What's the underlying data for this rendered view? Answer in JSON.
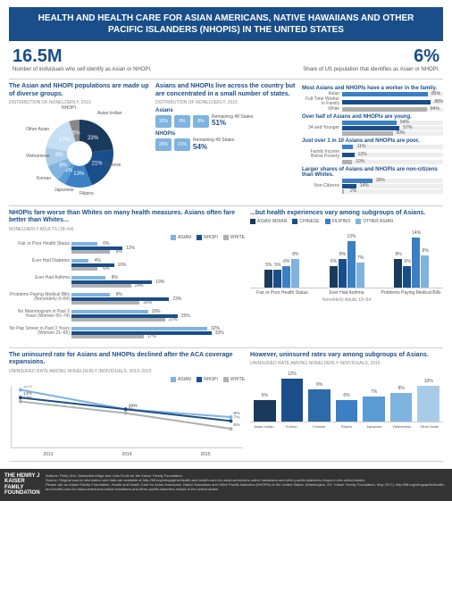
{
  "title": "HEALTH AND HEALTH CARE FOR ASIAN AMERICANS, NATIVE HAWAIIANS AND OTHER PACIFIC ISLANDERS (NHOPIS) IN THE UNITED STATES",
  "topstats": {
    "left_val": "16.5M",
    "left_sub": "Number of individuals who self identify as Asian or NHOPI.",
    "right_val": "6%",
    "right_sub": "Share of US population that identifies as Asian or NHOPI."
  },
  "colors": {
    "navy": "#1a4e8a",
    "blue": "#3b7fc4",
    "light": "#7fb3e0",
    "pale": "#c6dff2",
    "gray": "#b0b0b0",
    "dark": "#333333",
    "grid": "#e0e0e0"
  },
  "pie": {
    "hdr": "The Asian and NHOPI populations are made up of diverse groups.",
    "sub": "DISTRIBUTION OF NONELDERLY, 2015",
    "slices": [
      {
        "label": "Asian Indian",
        "val": 23,
        "color": "#1a3a5c"
      },
      {
        "label": "Chinese",
        "val": 21,
        "color": "#1a4e8a"
      },
      {
        "label": "Filipino",
        "val": 13,
        "color": "#3b7fc4"
      },
      {
        "label": "Japanese",
        "val": 4,
        "color": "#5a9bd4"
      },
      {
        "label": "Korean",
        "val": 8,
        "color": "#7fb3e0"
      },
      {
        "label": "Vietnamese",
        "val": 9,
        "color": "#a8cce8"
      },
      {
        "label": "Other Asian",
        "val": 17,
        "color": "#c6dff2"
      },
      {
        "label": "NHOPI",
        "val": 5,
        "color": "#888888"
      }
    ]
  },
  "maps": {
    "hdr": "Asians and NHOPIs live across the country but are concentrated in a small number of states.",
    "sub": "DISTRIBUTION OF NONELDERLY, 2015",
    "asians": {
      "title": "Asians",
      "states": [
        {
          "v": "32%"
        },
        {
          "v": "9%"
        },
        {
          "v": "8%"
        }
      ],
      "remain_lbl": "Remaining 48 States",
      "remain_pct": "51%"
    },
    "nhopis": {
      "title": "NHOPIs",
      "states": [
        {
          "v": "25%"
        },
        {
          "v": "21%"
        }
      ],
      "remain_lbl": "Remaining 49 States",
      "remain_pct": "54%"
    }
  },
  "rightcol": {
    "g1": {
      "hdr": "Most Asians and NHOPIs have a worker in the family.",
      "lbl": "Full-Time Worker in Family",
      "rows": [
        {
          "n": "Asian",
          "v": 85,
          "c": "#3b7fc4"
        },
        {
          "n": "NHOPI",
          "v": 88,
          "c": "#1a4e8a"
        },
        {
          "n": "White",
          "v": 84,
          "c": "#b0b0b0"
        }
      ]
    },
    "g2": {
      "hdr": "Over half of Asians and NHOPIs are young.",
      "lbl": "34 and Younger",
      "rows": [
        {
          "n": "",
          "v": 54,
          "c": "#3b7fc4"
        },
        {
          "n": "",
          "v": 57,
          "c": "#1a4e8a"
        },
        {
          "n": "",
          "v": 50,
          "c": "#b0b0b0"
        }
      ]
    },
    "g3": {
      "hdr": "Just over 1 in 10 Asians and NHOPIs are poor.",
      "lbl": "Family Income Below Poverty",
      "rows": [
        {
          "n": "",
          "v": 11,
          "c": "#3b7fc4"
        },
        {
          "n": "",
          "v": 12,
          "c": "#1a4e8a"
        },
        {
          "n": "",
          "v": 10,
          "c": "#b0b0b0"
        }
      ]
    },
    "g4": {
      "hdr": "Larger shares of Asians and NHOPIs are non-citizens than Whites.",
      "lbl": "Non-Citizens",
      "rows": [
        {
          "n": "",
          "v": 30,
          "c": "#3b7fc4"
        },
        {
          "n": "",
          "v": 14,
          "c": "#1a4e8a"
        },
        {
          "n": "",
          "v": 2,
          "c": "#b0b0b0"
        }
      ]
    }
  },
  "health": {
    "left_hdr": "NHOPIs fare worse than Whites on many health measures. Asians often fare better than Whites...",
    "left_sub": "NONELDERLY ADULTS (18–64)",
    "right_hdr": "...but health experiences vary among subgroups of Asians.",
    "legend": [
      {
        "n": "ASIAN",
        "c": "#7fb3e0"
      },
      {
        "n": "NHOPI",
        "c": "#1a4e8a"
      },
      {
        "n": "WHITE",
        "c": "#b0b0b0"
      }
    ],
    "legend_r": [
      {
        "n": "ASIAN INDIAN",
        "c": "#1a3a5c"
      },
      {
        "n": "CHINESE",
        "c": "#1a4e8a"
      },
      {
        "n": "FILIPINO",
        "c": "#3b7fc4"
      },
      {
        "n": "OTHER ASIAN",
        "c": "#7fb3e0"
      }
    ],
    "measures": [
      {
        "lbl": "Fair or Poor Health Status",
        "v": [
          6,
          12,
          9
        ]
      },
      {
        "lbl": "Ever Had Diabetes",
        "v": [
          4,
          10,
          6
        ]
      },
      {
        "lbl": "Ever Had Asthma",
        "v": [
          8,
          19,
          14
        ]
      },
      {
        "lbl": "Problems Paying Medical Bills (Nonelderly 0–64)",
        "v": [
          9,
          23,
          16
        ]
      },
      {
        "lbl": "No Mammogram in Past 2 Years (Women 50–74)",
        "v": [
          18,
          25,
          22
        ]
      },
      {
        "lbl": "No Pap Smear in Past 3 Years (Women 21–65)",
        "v": [
          32,
          33,
          17
        ]
      }
    ],
    "right_groups": [
      {
        "lbl": "Fair or Poor Health Status",
        "v": [
          5,
          5,
          6,
          8
        ]
      },
      {
        "lbl": "Ever Had Asthma",
        "v": [
          6,
          8,
          13,
          7
        ]
      },
      {
        "lbl": "Problems Paying Medical Bills",
        "v": [
          8,
          6,
          14,
          9
        ]
      }
    ],
    "right_sub": "Nonelderly Adults 18–64"
  },
  "uninsured": {
    "left_hdr": "The uninsured rate for Asians and NHOPIs declined after the ACA coverage expansions.",
    "left_sub": "UNINSURED RATE AMONG NONELDERLY INDIVIDUALS, 2013–2015",
    "line": {
      "years": [
        "2013",
        "2014",
        "2015"
      ],
      "series": [
        {
          "n": "ASIAN",
          "c": "#7fb3e0",
          "v": [
            15,
            10,
            8
          ]
        },
        {
          "n": "NHOPI",
          "c": "#1a4e8a",
          "v": [
            13,
            10,
            7
          ]
        },
        {
          "n": "WHITE",
          "c": "#b0b0b0",
          "v": [
            12,
            9,
            5
          ]
        }
      ]
    },
    "right_hdr": "However, uninsured rates vary among subgroups of Asians.",
    "right_sub": "UNINSURED RATE AMONG NONELDERLY INDIVIDUALS, 2015",
    "bars": [
      {
        "n": "Asian Indian",
        "v": 6,
        "c": "#1a3a5c"
      },
      {
        "n": "Korean",
        "v": 12,
        "c": "#1a4e8a"
      },
      {
        "n": "Chinese",
        "v": 9,
        "c": "#2c6aa8"
      },
      {
        "n": "Filipino",
        "v": 6,
        "c": "#3b7fc4"
      },
      {
        "n": "Japanese",
        "v": 7,
        "c": "#5a9bd4"
      },
      {
        "n": "Vietnamese",
        "v": 8,
        "c": "#7fb3e0"
      },
      {
        "n": "Other Asian",
        "v": 10,
        "c": "#a8cce8"
      }
    ]
  },
  "footer": {
    "logo": "THE HENRY J KAISER FAMILY FOUNDATION",
    "authors": "Authors: Petry Ubri, Samantha Artiga and Julia Foutz for the Kaiser Family Foundation.",
    "source": "Source: Original source information and data are available at http://kff.org/infographic/health-and-health-care-for-asian-americans-native-hawaiians-and-other-pacific-islanders-nhopis-in-the-united-states.",
    "cite": "Please cite as Kaiser Family Foundation, Health and Health Care for Asian Americans, Native Hawaiians and Other Pacific Islanders (NHOPIs) in the United States. (Washington, DC: Kaiser Family Foundation, May 2017), http://kff.org/infographic/health-and-health-care-for-asian-americans-native-hawaiians-and-other-pacific-islanders-nhopis-in-the-united-states."
  }
}
